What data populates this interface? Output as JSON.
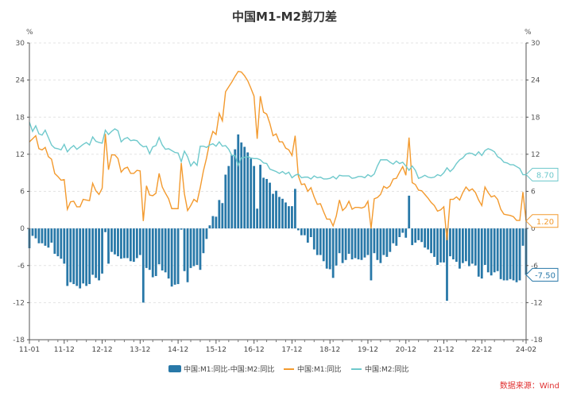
{
  "chart_data": {
    "type": "bar+line",
    "title": "中国M1-M2剪刀差",
    "ylabel_left": "%",
    "ylabel_right": "%",
    "ylim": [
      -18,
      30
    ],
    "yticks": [
      -18,
      -12,
      -6,
      0,
      6,
      12,
      18,
      24,
      30
    ],
    "x_start": "2011-01",
    "x_end": "2024-02",
    "frequency": "monthly",
    "xtick_labels": [
      "11-01",
      "11-12",
      "12-12",
      "13-12",
      "14-12",
      "15-12",
      "16-12",
      "17-12",
      "18-12",
      "19-12",
      "20-12",
      "21-12",
      "22-12",
      "24-02"
    ],
    "xtick_index": [
      0,
      11,
      23,
      35,
      47,
      59,
      71,
      83,
      95,
      107,
      119,
      131,
      143,
      157
    ],
    "series": [
      {
        "name": "中国:M1:同比-中国:M2:同比",
        "type": "bar",
        "color": "#2878a8",
        "derived": "M1-M2",
        "last_label": "-7.50"
      },
      {
        "name": "中国:M1:同比",
        "type": "line",
        "color": "#f39a2e",
        "last_label": "1.20",
        "values": [
          14.0,
          14.5,
          15.0,
          12.9,
          12.7,
          13.1,
          11.6,
          11.2,
          8.9,
          8.4,
          7.8,
          7.9,
          3.1,
          4.3,
          4.4,
          3.5,
          3.5,
          4.7,
          4.6,
          4.5,
          7.3,
          6.1,
          5.5,
          6.5,
          15.3,
          9.5,
          11.9,
          11.9,
          11.3,
          9.1,
          9.7,
          9.9,
          8.9,
          8.9,
          9.4,
          9.3,
          1.2,
          6.9,
          5.4,
          5.3,
          5.7,
          8.9,
          6.7,
          5.7,
          4.8,
          3.2,
          3.2,
          3.2,
          10.6,
          5.6,
          2.9,
          3.7,
          4.7,
          4.3,
          6.6,
          9.3,
          11.4,
          14.0,
          15.7,
          15.2,
          18.6,
          17.4,
          22.1,
          22.9,
          23.7,
          24.6,
          25.4,
          25.3,
          24.7,
          23.9,
          22.7,
          21.4,
          14.5,
          21.4,
          18.8,
          18.5,
          17.0,
          15.0,
          15.3,
          14.0,
          14.0,
          13.0,
          12.7,
          11.8,
          15.0,
          8.5,
          7.1,
          7.2,
          6.0,
          6.6,
          5.1,
          3.9,
          4.0,
          2.7,
          1.5,
          1.5,
          0.4,
          2.0,
          4.6,
          2.9,
          3.4,
          4.4,
          3.1,
          3.4,
          3.4,
          3.3,
          3.5,
          4.4,
          0.0,
          4.8,
          5.0,
          5.5,
          6.8,
          6.5,
          6.9,
          8.0,
          8.1,
          9.1,
          10.0,
          8.6,
          14.7,
          7.4,
          7.1,
          6.2,
          6.1,
          5.5,
          4.9,
          4.2,
          3.7,
          2.8,
          3.0,
          3.5,
          -1.9,
          4.7,
          4.7,
          5.1,
          4.6,
          5.8,
          6.7,
          6.1,
          6.4,
          5.8,
          4.6,
          3.7,
          6.7,
          5.8,
          5.1,
          5.3,
          4.7,
          3.1,
          2.3,
          2.2,
          2.1,
          1.9,
          1.3,
          1.3,
          5.9,
          1.2
        ]
      },
      {
        "name": "中国:M2:同比",
        "type": "line",
        "color": "#6fc9cc",
        "last_label": "8.70",
        "values": [
          17.2,
          15.7,
          16.6,
          15.3,
          15.1,
          15.9,
          14.7,
          13.5,
          13.0,
          12.9,
          12.7,
          13.6,
          12.4,
          13.0,
          13.4,
          12.8,
          13.2,
          13.6,
          13.9,
          13.5,
          14.8,
          14.1,
          13.9,
          13.8,
          15.9,
          15.2,
          15.7,
          16.1,
          15.8,
          14.0,
          14.5,
          14.7,
          14.2,
          14.3,
          14.2,
          13.6,
          13.2,
          13.3,
          12.1,
          13.2,
          13.4,
          14.7,
          13.5,
          12.8,
          12.9,
          12.6,
          12.3,
          12.2,
          10.8,
          12.5,
          11.6,
          10.1,
          10.8,
          10.2,
          13.3,
          13.3,
          13.1,
          13.5,
          13.7,
          13.3,
          14.0,
          13.3,
          13.4,
          12.8,
          11.8,
          11.8,
          10.2,
          11.4,
          11.5,
          11.6,
          11.4,
          11.3,
          11.3,
          11.1,
          10.6,
          10.5,
          9.6,
          9.4,
          9.2,
          8.9,
          9.2,
          8.8,
          9.1,
          8.2,
          8.6,
          8.8,
          8.2,
          8.3,
          8.3,
          8.0,
          8.5,
          8.2,
          8.3,
          8.0,
          8.0,
          8.1,
          8.4,
          8.0,
          8.6,
          8.5,
          8.5,
          8.5,
          8.1,
          8.2,
          8.4,
          8.4,
          8.2,
          8.7,
          8.4,
          8.8,
          10.1,
          11.1,
          11.1,
          11.1,
          10.7,
          10.4,
          10.9,
          10.5,
          10.7,
          10.1,
          9.4,
          10.1,
          9.4,
          8.1,
          8.3,
          8.6,
          8.3,
          8.2,
          8.3,
          8.7,
          8.5,
          9.0,
          9.8,
          9.2,
          9.7,
          10.5,
          11.1,
          11.4,
          12.0,
          12.2,
          12.1,
          11.8,
          12.4,
          11.8,
          12.6,
          12.9,
          12.7,
          12.4,
          11.6,
          11.3,
          10.7,
          10.6,
          10.3,
          10.3,
          10.0,
          9.7,
          8.7,
          8.7
        ]
      }
    ],
    "legend_position": "bottom-center",
    "source": "数据来源：Wind",
    "source_color": "#e03030"
  }
}
